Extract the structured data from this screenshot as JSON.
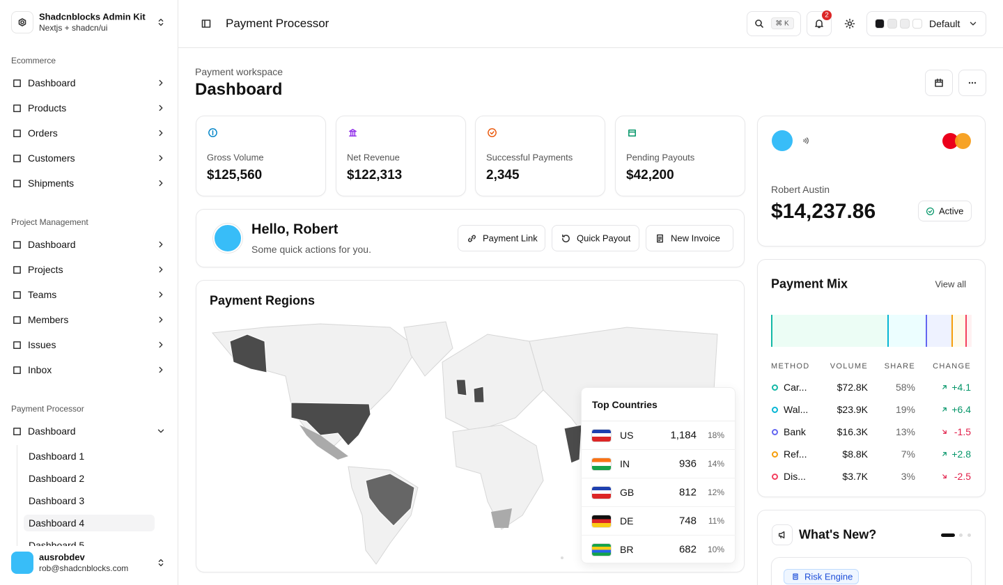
{
  "sidebar": {
    "brand": {
      "title": "Shadcnblocks Admin Kit",
      "subtitle": "Nextjs + shadcn/ui"
    },
    "groups": [
      {
        "label": "Ecommerce",
        "items": [
          "Dashboard",
          "Products",
          "Orders",
          "Customers",
          "Shipments"
        ]
      },
      {
        "label": "Project Management",
        "items": [
          "Dashboard",
          "Projects",
          "Teams",
          "Members",
          "Issues",
          "Inbox"
        ]
      },
      {
        "label": "Payment Processor",
        "items": [
          "Dashboard"
        ],
        "subitems": [
          "Dashboard 1",
          "Dashboard 2",
          "Dashboard 3",
          "Dashboard 4",
          "Dashboard 5"
        ]
      }
    ],
    "user": {
      "name": "ausrobdev",
      "email": "rob@shadcnblocks.com"
    }
  },
  "header": {
    "title": "Payment Processor",
    "shortcut": "⌘ K",
    "notifications": "2",
    "theme": "Default"
  },
  "page": {
    "eyebrow": "Payment workspace",
    "title": "Dashboard"
  },
  "stats": [
    {
      "label": "Gross Volume",
      "value": "$125,560"
    },
    {
      "label": "Net Revenue",
      "value": "$122,313"
    },
    {
      "label": "Successful Payments",
      "value": "2,345"
    },
    {
      "label": "Pending Payouts",
      "value": "$42,200"
    }
  ],
  "greeting": {
    "title": "Hello, Robert",
    "subtitle": "Some quick actions for you.",
    "actions": [
      "Payment Link",
      "Quick Payout",
      "New Invoice"
    ]
  },
  "regions": {
    "title": "Payment Regions",
    "top": {
      "title": "Top Countries",
      "rows": [
        {
          "code": "US",
          "count": "1,184",
          "share": "18%"
        },
        {
          "code": "IN",
          "count": "936",
          "share": "14%"
        },
        {
          "code": "GB",
          "count": "812",
          "share": "12%"
        },
        {
          "code": "DE",
          "count": "748",
          "share": "11%"
        },
        {
          "code": "BR",
          "count": "682",
          "share": "10%"
        }
      ]
    }
  },
  "card": {
    "name": "Robert Austin",
    "balance": "$14,237.86",
    "status": "Active"
  },
  "mix": {
    "title": "Payment Mix",
    "link": "View all",
    "columns": [
      "METHOD",
      "VOLUME",
      "SHARE",
      "CHANGE"
    ],
    "rows": [
      {
        "method": "Car...",
        "volume": "$72.8K",
        "share": {
          "value": 58,
          "label": "58%"
        },
        "change": {
          "value": 4.1,
          "label": "+4.1"
        }
      },
      {
        "method": "Wal...",
        "volume": "$23.9K",
        "share": {
          "value": 19,
          "label": "19%"
        },
        "change": {
          "value": 6.4,
          "label": "+6.4"
        }
      },
      {
        "method": "Bank",
        "volume": "$16.3K",
        "share": {
          "value": 13,
          "label": "13%"
        },
        "change": {
          "value": -1.5,
          "label": "-1.5"
        }
      },
      {
        "method": "Ref...",
        "volume": "$8.8K",
        "share": {
          "value": 7,
          "label": "7%"
        },
        "change": {
          "value": 2.8,
          "label": "+2.8"
        }
      },
      {
        "method": "Dis...",
        "volume": "$3.7K",
        "share": {
          "value": 3,
          "label": "3%"
        },
        "change": {
          "value": -2.5,
          "label": "-2.5"
        }
      }
    ]
  },
  "whats_new": {
    "title": "What's New?",
    "tag": "Risk Engine"
  }
}
